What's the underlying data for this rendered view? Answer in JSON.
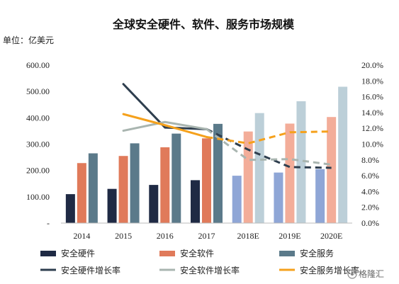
{
  "chart_data": {
    "type": "bar",
    "title": "全球安全硬件、软件、服务市场规模",
    "unit_label": "单位：亿美元",
    "categories": [
      "2014",
      "2015",
      "2016",
      "2017",
      "2018E",
      "2019E",
      "2020E"
    ],
    "y_left": {
      "ylim": [
        0,
        600
      ],
      "ticks": [
        "-",
        "100.00",
        "200.00",
        "300.00",
        "400.00",
        "500.00",
        "600.00"
      ]
    },
    "y_right": {
      "ylim": [
        0,
        20
      ],
      "ticks": [
        "0.0%",
        "2.0%",
        "4.0%",
        "6.0%",
        "8.0%",
        "10.0%",
        "12.0%",
        "14.0%",
        "16.0%",
        "18.0%",
        "20.0%"
      ]
    },
    "bar_series": [
      {
        "name": "安全硬件",
        "values": [
          110,
          130,
          145,
          163,
          180,
          192,
          205
        ],
        "color": "#1f2a44",
        "forecast_color": "#8fa6d6"
      },
      {
        "name": "安全软件",
        "values": [
          228,
          255,
          288,
          322,
          348,
          378,
          403
        ],
        "color": "#e07a5a",
        "forecast_color": "#f3ad99"
      },
      {
        "name": "安全服务",
        "values": [
          265,
          303,
          340,
          377,
          418,
          463,
          518
        ],
        "color": "#5b7a8a",
        "forecast_color": "#bccfd8"
      }
    ],
    "line_series": [
      {
        "name": "安全硬件增长率",
        "values": [
          null,
          17.6,
          12.1,
          11.9,
          9.3,
          7.1,
          7.0
        ],
        "color": "#2e3e4e",
        "dashed_from_index": 3
      },
      {
        "name": "安全软件增长率",
        "values": [
          null,
          11.7,
          12.8,
          11.9,
          8.0,
          8.1,
          7.4
        ],
        "color": "#a9b5b0",
        "dashed_from_index": 3
      },
      {
        "name": "安全服务增长率",
        "values": [
          null,
          13.8,
          12.4,
          10.9,
          10.1,
          11.5,
          11.6
        ],
        "color": "#f5a11c",
        "dashed_from_index": 3
      }
    ],
    "forecast_from_index": 4,
    "legend_placement": "bottom",
    "grid": false
  },
  "watermark": "格隆汇"
}
